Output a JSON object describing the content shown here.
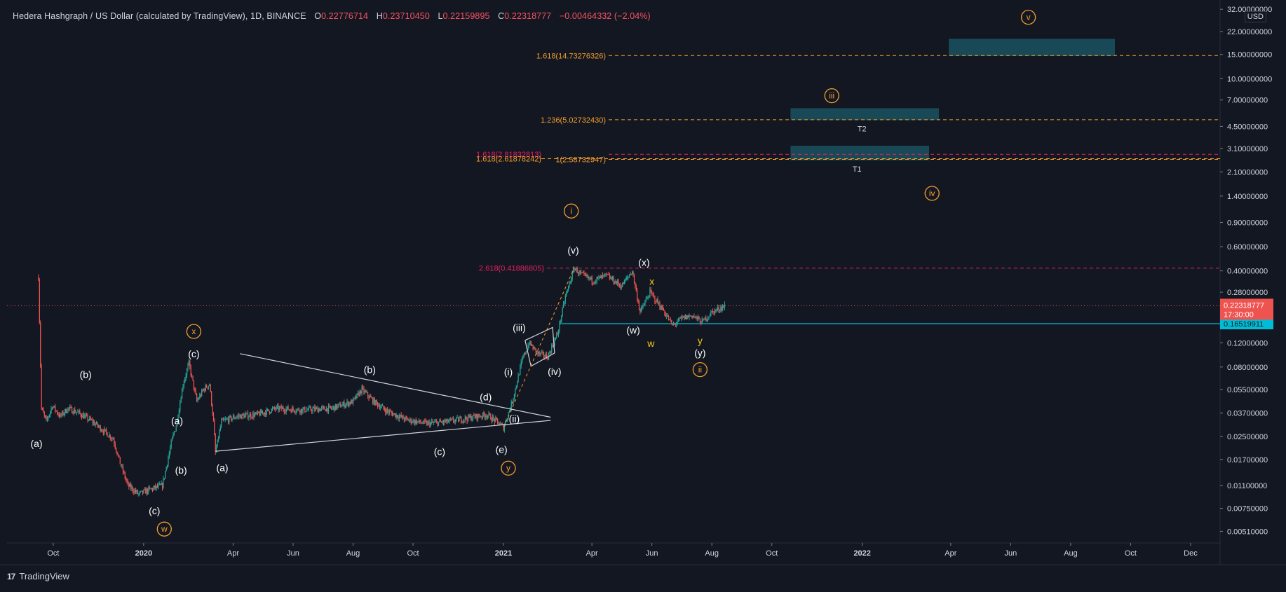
{
  "header": {
    "symbol": "Hedera Hashgraph / US Dollar (calculated by TradingView), 1D, BINANCE",
    "open_label": "O",
    "open": "0.22776714",
    "high_label": "H",
    "high": "0.23710450",
    "low_label": "L",
    "low": "0.22159895",
    "close_label": "C",
    "close": "0.22318777",
    "change": "−0.00464332 (−2.04%)"
  },
  "currency": "USD",
  "brand": "TradingView",
  "colors": {
    "background": "#131722",
    "up": "#26a69a",
    "down": "#ef5350",
    "fib_orange": "#f59e2c",
    "fib_pink": "#e91e63",
    "support": "#00bcd4",
    "target_box": "#1b4f5c",
    "price_line": "#ef5350"
  },
  "chart_data": {
    "type": "candlestick",
    "scale": "log",
    "y_ticks": [
      "32.00000000",
      "22.00000000",
      "15.00000000",
      "10.00000000",
      "7.00000000",
      "4.50000000",
      "3.10000000",
      "2.10000000",
      "1.40000000",
      "0.90000000",
      "0.60000000",
      "0.40000000",
      "0.28000000",
      "0.12000000",
      "0.08000000",
      "0.05500000",
      "0.03700000",
      "0.02500000",
      "0.01700000",
      "0.01100000",
      "0.00750000",
      "0.00510000"
    ],
    "x_ticks": [
      {
        "label": "Oct",
        "bold": false
      },
      {
        "label": "2020",
        "bold": true
      },
      {
        "label": "Apr",
        "bold": false
      },
      {
        "label": "Jun",
        "bold": false
      },
      {
        "label": "Aug",
        "bold": false
      },
      {
        "label": "Oct",
        "bold": false
      },
      {
        "label": "2021",
        "bold": true
      },
      {
        "label": "Apr",
        "bold": false
      },
      {
        "label": "Jun",
        "bold": false
      },
      {
        "label": "Aug",
        "bold": false
      },
      {
        "label": "Oct",
        "bold": false
      },
      {
        "label": "2022",
        "bold": true
      },
      {
        "label": "Apr",
        "bold": false
      },
      {
        "label": "Jun",
        "bold": false
      },
      {
        "label": "Aug",
        "bold": false
      },
      {
        "label": "Oct",
        "bold": false
      },
      {
        "label": "Dec",
        "bold": false
      }
    ],
    "x_range": [
      "2019-08-15",
      "2022-12-31"
    ],
    "y_range": [
      0.0042,
      34
    ],
    "price_path": [
      [
        "2019-09-16",
        0.36
      ],
      [
        "2019-09-19",
        0.04
      ],
      [
        "2019-09-24",
        0.032
      ],
      [
        "2019-09-30",
        0.042
      ],
      [
        "2019-10-08",
        0.035
      ],
      [
        "2019-10-16",
        0.04
      ],
      [
        "2019-10-27",
        0.037
      ],
      [
        "2019-11-10",
        0.032
      ],
      [
        "2019-11-20",
        0.028
      ],
      [
        "2019-12-01",
        0.024
      ],
      [
        "2019-12-08",
        0.016
      ],
      [
        "2019-12-16",
        0.011
      ],
      [
        "2019-12-27",
        0.0095
      ],
      [
        "2020-01-06",
        0.0102
      ],
      [
        "2020-01-20",
        0.011
      ],
      [
        "2020-01-30",
        0.024
      ],
      [
        "2020-02-03",
        0.03
      ],
      [
        "2020-02-10",
        0.06
      ],
      [
        "2020-02-16",
        0.085
      ],
      [
        "2020-02-24",
        0.045
      ],
      [
        "2020-03-02",
        0.055
      ],
      [
        "2020-03-08",
        0.06
      ],
      [
        "2020-03-12",
        0.032
      ],
      [
        "2020-03-14",
        0.019
      ],
      [
        "2020-03-20",
        0.032
      ],
      [
        "2020-04-05",
        0.035
      ],
      [
        "2020-04-25",
        0.036
      ],
      [
        "2020-05-15",
        0.04
      ],
      [
        "2020-06-10",
        0.039
      ],
      [
        "2020-07-10",
        0.04
      ],
      [
        "2020-08-01",
        0.045
      ],
      [
        "2020-08-10",
        0.055
      ],
      [
        "2020-08-22",
        0.045
      ],
      [
        "2020-09-05",
        0.038
      ],
      [
        "2020-09-25",
        0.033
      ],
      [
        "2020-10-15",
        0.031
      ],
      [
        "2020-11-05",
        0.032
      ],
      [
        "2020-11-25",
        0.034
      ],
      [
        "2020-12-15",
        0.036
      ],
      [
        "2020-12-28",
        0.031
      ],
      [
        "2021-01-01",
        0.029
      ],
      [
        "2021-01-10",
        0.045
      ],
      [
        "2021-01-20",
        0.09
      ],
      [
        "2021-01-27",
        0.12
      ],
      [
        "2021-02-05",
        0.1
      ],
      [
        "2021-02-15",
        0.095
      ],
      [
        "2021-02-25",
        0.14
      ],
      [
        "2021-03-05",
        0.26
      ],
      [
        "2021-03-14",
        0.42
      ],
      [
        "2021-03-20",
        0.38
      ],
      [
        "2021-04-02",
        0.34
      ],
      [
        "2021-04-16",
        0.37
      ],
      [
        "2021-05-01",
        0.31
      ],
      [
        "2021-05-12",
        0.4
      ],
      [
        "2021-05-20",
        0.2
      ],
      [
        "2021-05-30",
        0.28
      ],
      [
        "2021-06-12",
        0.21
      ],
      [
        "2021-06-22",
        0.16
      ],
      [
        "2021-07-01",
        0.18
      ],
      [
        "2021-07-12",
        0.19
      ],
      [
        "2021-07-22",
        0.17
      ],
      [
        "2021-08-01",
        0.2
      ],
      [
        "2021-08-14",
        0.223
      ]
    ],
    "fib_levels": [
      {
        "label": "1.618(14.73276326)",
        "value": 14.73,
        "color": "orange"
      },
      {
        "label": "1.236(5.02732430)",
        "value": 5.03,
        "color": "orange"
      },
      {
        "label": "1.618(2.81832813)",
        "value": 2.82,
        "color": "pink"
      },
      {
        "label": "1.618(2.61878242)",
        "value": 2.62,
        "color": "orange"
      },
      {
        "label": "1(2.58732947)",
        "value": 2.59,
        "color": "orange"
      },
      {
        "label": "2.618(0.41886805)",
        "value": 0.419,
        "color": "pink"
      }
    ],
    "target_boxes": [
      {
        "label": "T2",
        "x0": "2021-10-20",
        "x1": "2022-03-20",
        "y0": 5.0,
        "y1": 6.1
      },
      {
        "label": "T1",
        "x0": "2021-10-20",
        "x1": "2022-03-10",
        "y0": 2.55,
        "y1": 3.25
      },
      {
        "label": "",
        "x0": "2022-03-30",
        "x1": "2022-09-15",
        "y0": 14.6,
        "y1": 19.5
      }
    ],
    "support_level": {
      "value": 0.16519911,
      "label": "0.16519911",
      "from": "2021-03-01"
    },
    "last_price": {
      "value": 0.22318777,
      "label": "0.22318777",
      "countdown": "17:30:00"
    },
    "triangle_lines": [
      {
        "x0": "2020-03-14",
        "y0": 0.0195,
        "x1": "2021-02-18",
        "y1": 0.0327
      },
      {
        "x0": "2020-04-08",
        "y0": 0.1,
        "x1": "2021-02-18",
        "y1": 0.0345
      }
    ],
    "diamond": [
      [
        "2021-01-23",
        0.125
      ],
      [
        "2021-02-20",
        0.155
      ],
      [
        "2021-02-22",
        0.101
      ],
      [
        "2021-01-29",
        0.081
      ]
    ],
    "dashed_wave": [
      [
        "2021-01-01",
        0.029
      ],
      [
        "2021-03-14",
        0.42
      ]
    ],
    "wave_labels": [
      {
        "text": "(a)",
        "x": "2019-09-14",
        "y": 0.0222,
        "style": "white"
      },
      {
        "text": "(b)",
        "x": "2019-11-03",
        "y": 0.0705,
        "style": "white"
      },
      {
        "text": "(c)",
        "x": "2020-01-12",
        "y": 0.0072,
        "style": "white"
      },
      {
        "text": "w",
        "x": "2020-01-22",
        "y": 0.0053,
        "style": "circle"
      },
      {
        "text": "(a)",
        "x": "2020-02-04",
        "y": 0.0326,
        "style": "white"
      },
      {
        "text": "(b)",
        "x": "2020-02-08",
        "y": 0.0142,
        "style": "white"
      },
      {
        "text": "(c)",
        "x": "2020-02-21",
        "y": 0.1,
        "style": "white"
      },
      {
        "text": "x",
        "x": "2020-02-21",
        "y": 0.145,
        "style": "circle"
      },
      {
        "text": "(a)",
        "x": "2020-03-21",
        "y": 0.0148,
        "style": "white"
      },
      {
        "text": "(b)",
        "x": "2020-08-18",
        "y": 0.0765,
        "style": "white"
      },
      {
        "text": "(c)",
        "x": "2020-10-28",
        "y": 0.0194,
        "style": "white"
      },
      {
        "text": "(d)",
        "x": "2020-12-14",
        "y": 0.0484,
        "style": "white"
      },
      {
        "text": "(e)",
        "x": "2020-12-30",
        "y": 0.0201,
        "style": "white"
      },
      {
        "text": "y",
        "x": "2021-01-06",
        "y": 0.0147,
        "style": "circle"
      },
      {
        "text": "(ii)",
        "x": "2021-01-12",
        "y": 0.0337,
        "style": "white"
      },
      {
        "text": "(i)",
        "x": "2021-01-06",
        "y": 0.074,
        "style": "white"
      },
      {
        "text": "(iii)",
        "x": "2021-01-17",
        "y": 0.155,
        "style": "white"
      },
      {
        "text": "(iv)",
        "x": "2021-02-22",
        "y": 0.0745,
        "style": "white"
      },
      {
        "text": "(v)",
        "x": "2021-03-13",
        "y": 0.568,
        "style": "white"
      },
      {
        "text": "i",
        "x": "2021-03-11",
        "y": 1.09,
        "style": "circle"
      },
      {
        "text": "(w)",
        "x": "2021-05-13",
        "y": 0.149,
        "style": "white"
      },
      {
        "text": "(x)",
        "x": "2021-05-24",
        "y": 0.462,
        "style": "white"
      },
      {
        "text": "x",
        "x": "2021-06-01",
        "y": 0.336,
        "style": "yellow"
      },
      {
        "text": "w",
        "x": "2021-05-31",
        "y": 0.1187,
        "style": "yellow"
      },
      {
        "text": "y",
        "x": "2021-07-20",
        "y": 0.1247,
        "style": "yellow"
      },
      {
        "text": "(y)",
        "x": "2021-07-20",
        "y": 0.1015,
        "style": "white"
      },
      {
        "text": "ii",
        "x": "2021-07-20",
        "y": 0.0765,
        "style": "circle"
      },
      {
        "text": "iii",
        "x": "2021-12-01",
        "y": 7.52,
        "style": "circle"
      },
      {
        "text": "iv",
        "x": "2022-03-13",
        "y": 1.465,
        "style": "circle"
      },
      {
        "text": "v",
        "x": "2022-06-19",
        "y": 27.97,
        "style": "circle"
      }
    ]
  }
}
